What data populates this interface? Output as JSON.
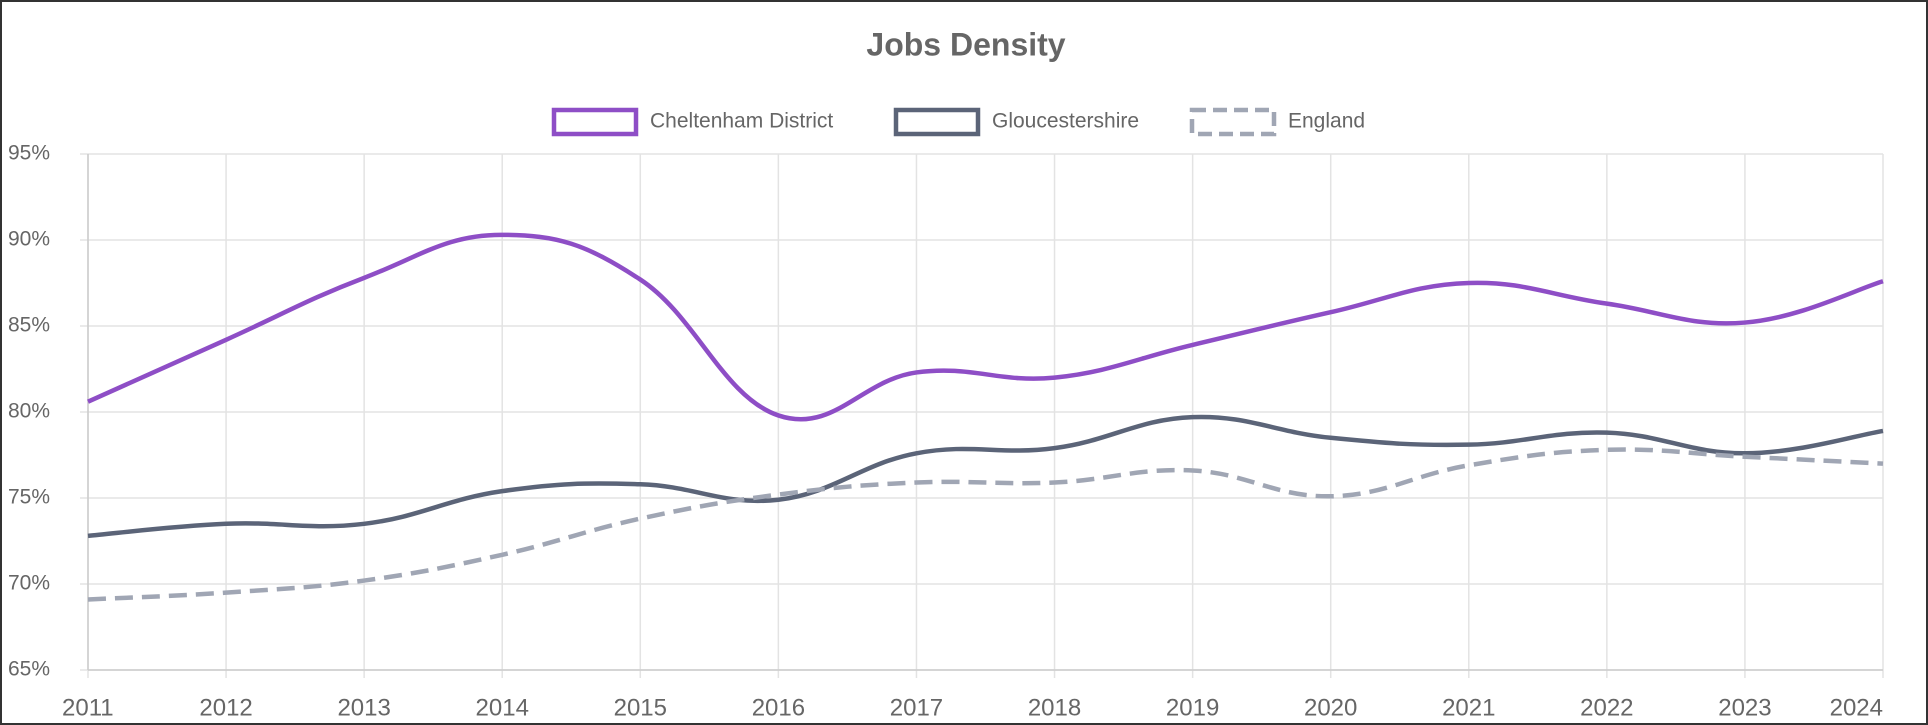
{
  "chart_data": {
    "type": "line",
    "title": "Jobs Density",
    "categories": [
      "2011",
      "2012",
      "2013",
      "2014",
      "2015",
      "2016",
      "2017",
      "2018",
      "2019",
      "2020",
      "2021",
      "2022",
      "2023",
      "2024"
    ],
    "series": [
      {
        "name": "Cheltenham District",
        "color": "#8e4ec6",
        "dashed": false,
        "values": [
          80.6,
          84.2,
          87.8,
          90.3,
          87.7,
          79.8,
          82.3,
          82.0,
          83.9,
          85.8,
          87.5,
          86.3,
          85.2,
          87.6
        ]
      },
      {
        "name": "Gloucestershire",
        "color": "#5b6478",
        "dashed": false,
        "values": [
          72.8,
          73.5,
          73.5,
          75.4,
          75.8,
          74.9,
          77.6,
          77.9,
          79.7,
          78.5,
          78.1,
          78.8,
          77.6,
          78.9
        ]
      },
      {
        "name": "England",
        "color": "#a0a6b4",
        "dashed": true,
        "values": [
          69.1,
          69.5,
          70.2,
          71.7,
          73.8,
          75.2,
          75.9,
          75.9,
          76.6,
          75.1,
          76.9,
          77.8,
          77.4,
          77.0
        ]
      }
    ],
    "ylim": [
      65,
      95
    ],
    "yticks": [
      {
        "value": 65,
        "label": "65%"
      },
      {
        "value": 70,
        "label": "70%"
      },
      {
        "value": 75,
        "label": "75%"
      },
      {
        "value": 80,
        "label": "80%"
      },
      {
        "value": 85,
        "label": "85%"
      },
      {
        "value": 90,
        "label": "90%"
      },
      {
        "value": 95,
        "label": "95%"
      }
    ],
    "grid": true,
    "legend": "top"
  }
}
